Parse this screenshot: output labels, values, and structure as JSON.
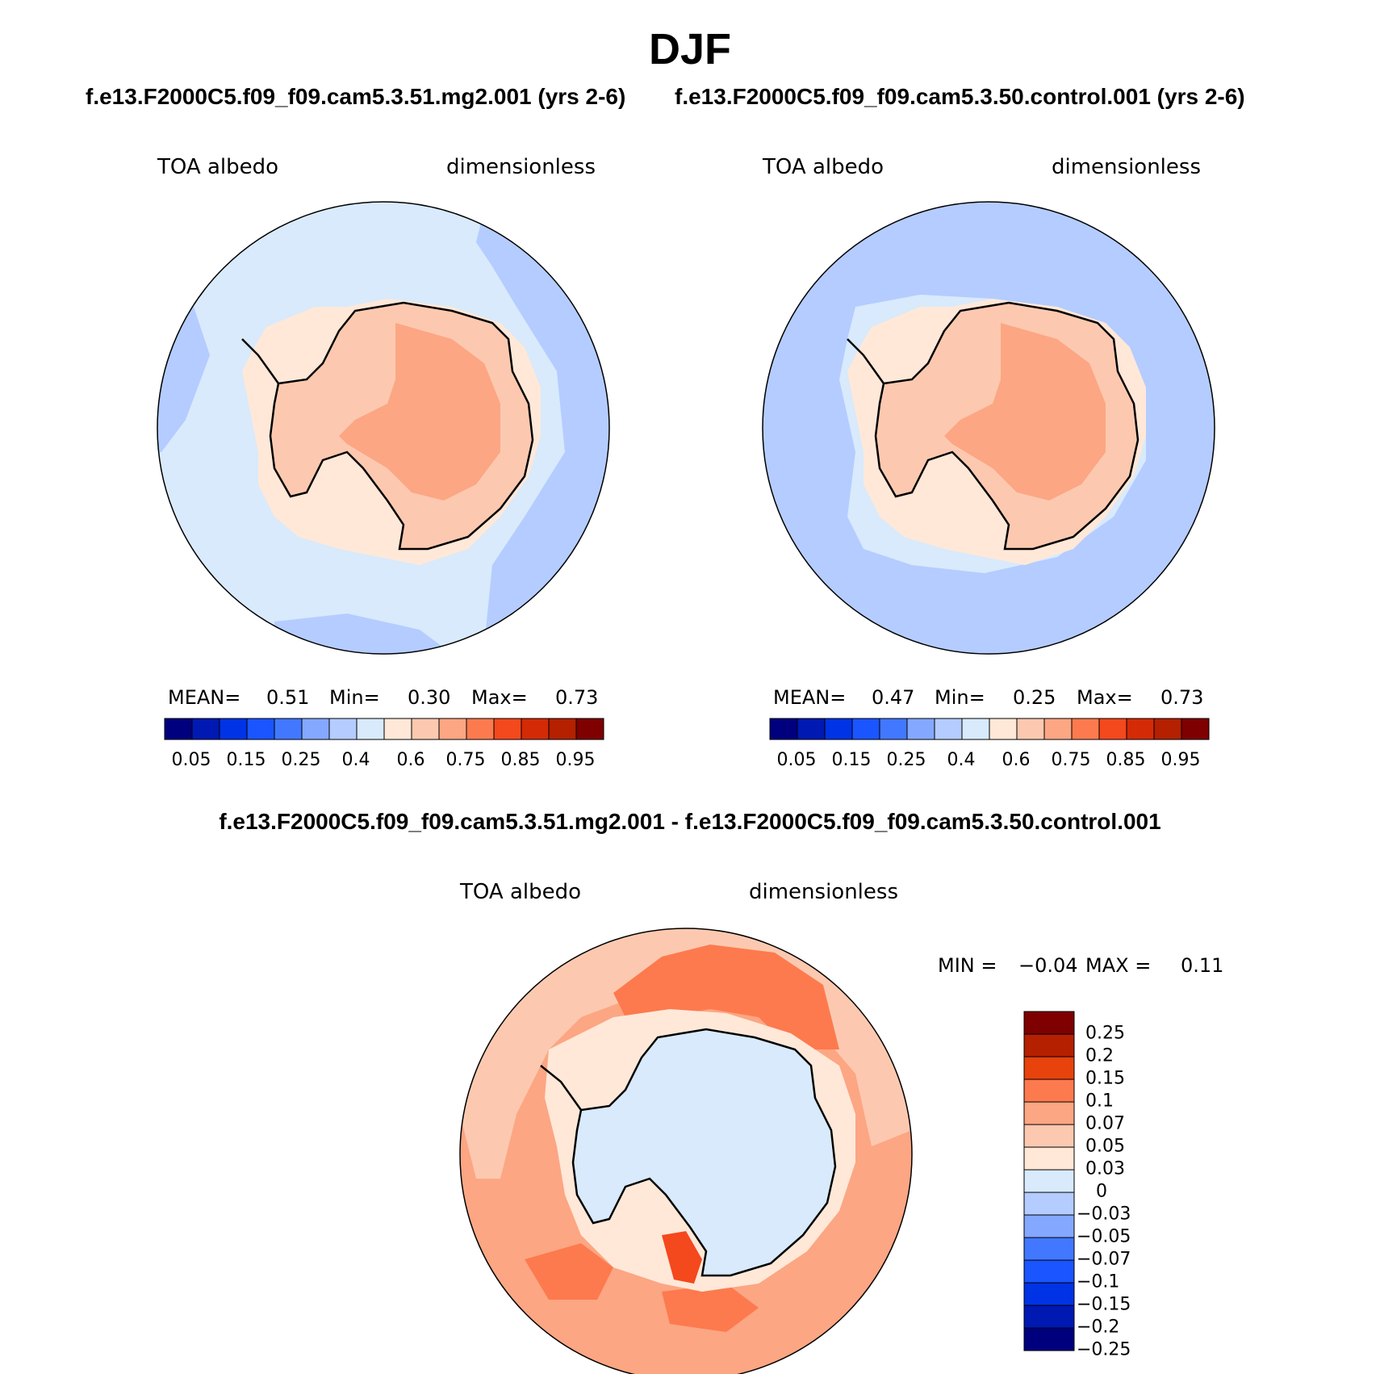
{
  "title": "DJF",
  "panels": [
    {
      "case": "f.e13.F2000C5.f09_f09.cam5.3.51.mg2.001 (yrs 2-6)",
      "variable": "TOA albedo",
      "units": "dimensionless",
      "stats": {
        "mean_label": "MEAN=",
        "mean": "0.51",
        "min_label": "Min=",
        "min": "0.30",
        "max_label": "Max=",
        "max": "0.73"
      }
    },
    {
      "case": "f.e13.F2000C5.f09_f09.cam5.3.50.control.001 (yrs 2-6)",
      "variable": "TOA albedo",
      "units": "dimensionless",
      "stats": {
        "mean_label": "MEAN=",
        "mean": "0.47",
        "min_label": "Min=",
        "min": "0.25",
        "max_label": "Max=",
        "max": "0.73"
      }
    }
  ],
  "difference": {
    "title": "f.e13.F2000C5.f09_f09.cam5.3.51.mg2.001 - f.e13.F2000C5.f09_f09.cam5.3.50.control.001",
    "variable": "TOA albedo",
    "units": "dimensionless",
    "stats": {
      "min_label": "MIN =",
      "min": "−0.04",
      "max_label": "MAX =",
      "max": "0.11"
    }
  },
  "colorbar_top": {
    "colors": [
      "#00007f",
      "#0019b2",
      "#0033e5",
      "#1a55ff",
      "#4278ff",
      "#84a8ff",
      "#b4ccff",
      "#d8eafb",
      "#ffe8d8",
      "#fcc9b0",
      "#fca683",
      "#fd7a4e",
      "#f4481d",
      "#d42a06",
      "#b42000",
      "#7f0000"
    ],
    "tick_labels": [
      "0.05",
      "0.15",
      "0.25",
      "0.4",
      "0.6",
      "0.75",
      "0.85",
      "0.95"
    ]
  },
  "colorbar_diff": {
    "colors_top_to_bottom": [
      "#7f0000",
      "#b42000",
      "#e8420d",
      "#fd7a4e",
      "#fca683",
      "#fcc9b0",
      "#ffe8d8",
      "#d8eafb",
      "#b4ccff",
      "#84a8ff",
      "#4278ff",
      "#1a55ff",
      "#0033e5",
      "#0019b2",
      "#00007f"
    ],
    "tick_labels": [
      "0.25",
      "0.2",
      "0.15",
      "0.1",
      "0.07",
      "0.05",
      "0.03",
      "0",
      "−0.03",
      "−0.05",
      "−0.07",
      "−0.1",
      "−0.15",
      "−0.2",
      "−0.25"
    ]
  },
  "map_colors": {
    "coast": "#000000",
    "p1_ocean": "#d8eafb",
    "p1_outer": "#b4ccff",
    "p1_pack": "#ffe8d8",
    "p1_land": "#fcc9b0",
    "p1_plateau": "#fca683",
    "p2_ocean": "#b4ccff",
    "p2_ring": "#d8eafb",
    "p2_pack": "#ffe8d8",
    "p2_land": "#fcc9b0",
    "p2_plateau": "#fca683",
    "d_ocean": "#fca683",
    "d_ring": "#fcc9b0",
    "d_high": "#fd7a4e",
    "d_pack": "#ffe8d8",
    "d_land": "#d8eafb",
    "d_peak": "#f4481d"
  }
}
